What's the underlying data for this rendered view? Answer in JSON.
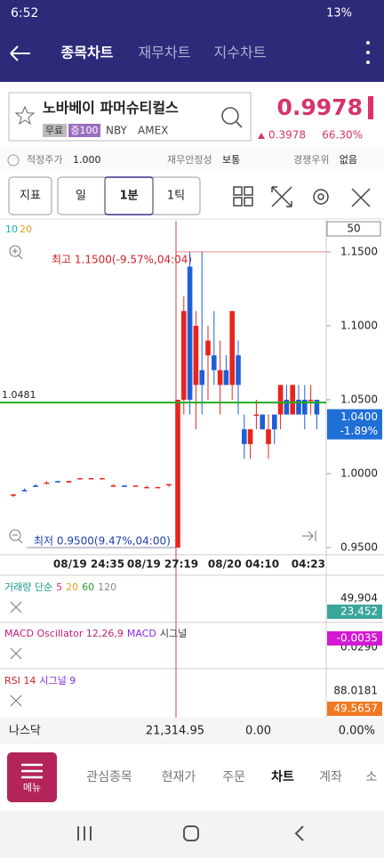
{
  "status_bar": {
    "time": "6:52",
    "battery": "13%"
  },
  "header": {
    "tabs": [
      "종목차트",
      "재무차트",
      "지수차트"
    ]
  },
  "stock": {
    "name": "노바베이 파머슈티컬스",
    "tags": [
      "무료",
      "증100"
    ],
    "ticker": "NBY",
    "exchange": "AMEX",
    "price": "0.9978",
    "change": "0.3978",
    "change_pct": "66.30%"
  },
  "info_row": [
    {
      "label": "적정주가",
      "value": "1.000"
    },
    {
      "label": "재무안정성",
      "value": "보통"
    },
    {
      "label": "경쟁우위",
      "value": "없음"
    }
  ],
  "toolbar": {
    "indicator": "지표",
    "periods": [
      "일",
      "1분",
      "1틱"
    ]
  },
  "chart_data": {
    "type": "candlestick",
    "ma_legend": [
      {
        "name": "10",
        "color": "#1ca7c8"
      },
      {
        "name": "20",
        "color": "#e0a020"
      }
    ],
    "count_box": "50",
    "up_color": "#e8241c",
    "down_color": "#1f5fd6",
    "open": [
      0.985,
      0.989,
      0.992,
      0.994,
      0.995,
      0.994,
      0.997,
      0.997,
      0.997,
      0.992,
      0.992,
      0.992,
      0.991,
      0.991,
      0.992,
      0.95,
      1.05,
      1.14,
      1.06,
      1.07,
      1.08,
      1.08,
      1.06,
      1.07,
      1.06,
      1.08,
      1.03,
      1.02,
      1.04,
      1.04,
      1.02,
      1.04,
      1.04,
      1.05,
      1.04,
      1.05,
      1.05,
      1.05,
      1.05
    ],
    "high": [
      0.986,
      0.99,
      0.993,
      0.995,
      0.995,
      0.995,
      0.997,
      0.997,
      0.997,
      0.993,
      0.992,
      0.992,
      0.992,
      0.991,
      0.993,
      1.05,
      1.12,
      1.15,
      1.11,
      1.15,
      1.1,
      1.11,
      1.09,
      1.08,
      1.11,
      1.09,
      1.04,
      1.03,
      1.05,
      1.04,
      1.04,
      1.04,
      1.06,
      1.06,
      1.06,
      1.06,
      1.06,
      1.06,
      1.05
    ],
    "low": [
      0.984,
      0.988,
      0.991,
      0.993,
      0.994,
      0.994,
      0.996,
      0.997,
      0.997,
      0.992,
      0.991,
      0.992,
      0.991,
      0.991,
      0.991,
      0.95,
      1.04,
      1.04,
      1.03,
      1.04,
      1.05,
      1.06,
      1.04,
      1.06,
      1.05,
      1.04,
      1.01,
      1.01,
      1.03,
      1.03,
      1.01,
      1.02,
      1.03,
      1.04,
      1.04,
      1.04,
      1.03,
      1.04,
      1.03
    ],
    "close": [
      0.986,
      0.988,
      0.991,
      0.994,
      0.994,
      0.995,
      0.997,
      0.997,
      0.997,
      0.992,
      0.991,
      0.992,
      0.991,
      0.991,
      0.993,
      1.05,
      1.11,
      1.05,
      1.1,
      1.06,
      1.09,
      1.07,
      1.07,
      1.06,
      1.11,
      1.06,
      1.02,
      1.03,
      1.04,
      1.03,
      1.03,
      1.03,
      1.06,
      1.04,
      1.06,
      1.04,
      1.04,
      1.05,
      1.04
    ],
    "ylim": [
      0.945,
      1.165
    ],
    "yticks": [
      {
        "value": 1.15,
        "label": "1.1500"
      },
      {
        "value": 1.1,
        "label": "1.1000"
      },
      {
        "value": 1.05,
        "label": "1.0500"
      },
      {
        "value": 1.0,
        "label": "1.0000"
      },
      {
        "value": 0.95,
        "label": "0.9500"
      }
    ],
    "high_value": 1.15,
    "high_label": "최고 1.1500(-9.57%,04:04)",
    "low_value": 0.95,
    "low_label": "최저 0.9500(9.47%,04:00)",
    "ref_line": {
      "value": 1.0481,
      "label": "1.0481",
      "color": "#22aa22"
    },
    "last": {
      "value": 1.04,
      "label": "1.0400",
      "change": "-1.89%"
    },
    "xtick_labels": [
      "08/19 24:35",
      "08/19 27:19",
      "08/20 04:10",
      "04:23"
    ]
  },
  "panes": [
    {
      "title": [
        {
          "text": "거래량 단순",
          "color": "#1a9a8a"
        },
        {
          "text": "5",
          "color": "#e0306a"
        },
        {
          "text": "20",
          "color": "#e0a020"
        },
        {
          "text": "60",
          "color": "#2a9a2a"
        },
        {
          "text": "120",
          "color": "#888888"
        }
      ],
      "labels": [
        "49,904",
        "23,452"
      ],
      "box_color": "#3aa69a"
    },
    {
      "title": [
        {
          "text": "MACD Oscillator 12,26,9",
          "color": "#c0207a"
        },
        {
          "text": "MACD",
          "color": "#8a2be2"
        },
        {
          "text": "시그널",
          "color": "#333333"
        }
      ],
      "labels": [
        "0.0290",
        "-0.0035"
      ],
      "box_color": "#d21ad2"
    },
    {
      "title": [
        {
          "text": "RSI 14",
          "color": "#d0202a"
        },
        {
          "text": "시그널 9",
          "color": "#8a2be2"
        }
      ],
      "labels": [
        "88.0181",
        "49.5657"
      ],
      "box_color": "#f07820"
    }
  ],
  "market": {
    "name": "나스닥",
    "value": "21,314.95",
    "change": "0.00",
    "change_pct": "0.00%"
  },
  "nav": {
    "menu": "메뉴",
    "tabs": [
      "관심종목",
      "현재가",
      "주문",
      "차트",
      "계좌",
      "소"
    ]
  }
}
